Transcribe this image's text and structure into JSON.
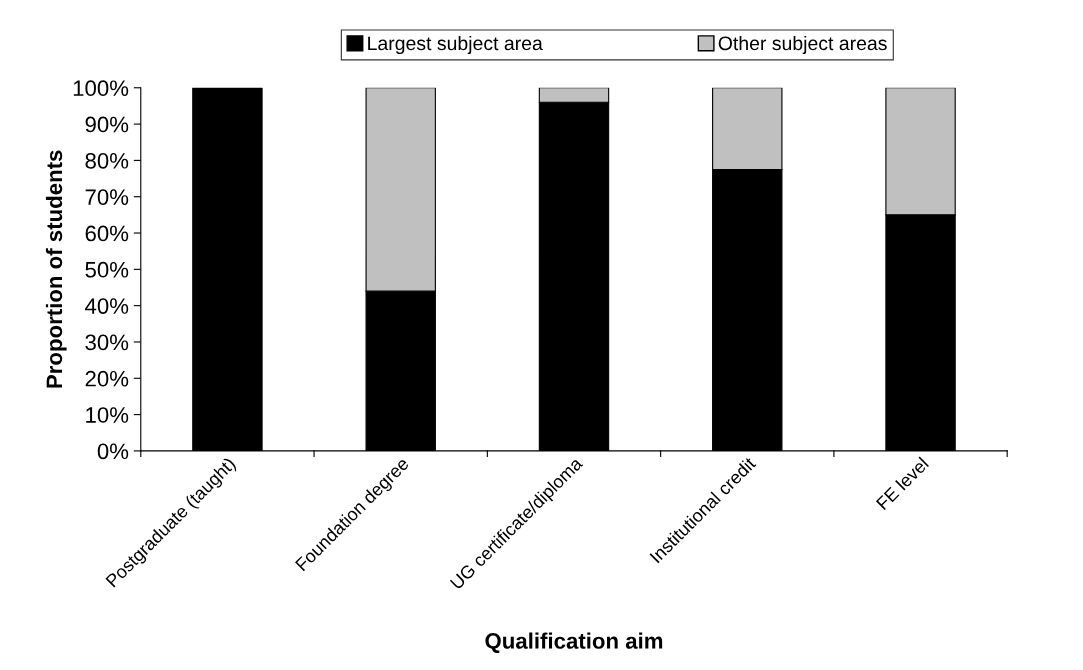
{
  "chart_data": {
    "type": "bar",
    "stacked": true,
    "xlabel": "Qualification aim",
    "ylabel": "Proportion of students",
    "categories": [
      "Postgraduate (taught)",
      "Foundation degree",
      "UG certificate/diploma",
      "Institutional credit",
      "FE level"
    ],
    "series": [
      {
        "name": "Largest subject area",
        "color": "#000000",
        "values": [
          100,
          44,
          96,
          77.5,
          65
        ]
      },
      {
        "name": "Other subject areas",
        "color": "#c0c0c0",
        "values": [
          null,
          56,
          4,
          22.5,
          35
        ]
      }
    ],
    "ylim": [
      0,
      100
    ],
    "yticks": [
      {
        "value": 0,
        "label": "0%"
      },
      {
        "value": 10,
        "label": "10%"
      },
      {
        "value": 20,
        "label": "20%"
      },
      {
        "value": 30,
        "label": "30%"
      },
      {
        "value": 40,
        "label": "40%"
      },
      {
        "value": 50,
        "label": "50%"
      },
      {
        "value": 60,
        "label": "60%"
      },
      {
        "value": 70,
        "label": "70%"
      },
      {
        "value": 80,
        "label": "80%"
      },
      {
        "value": 90,
        "label": "90%"
      },
      {
        "value": 100,
        "label": "100%"
      }
    ],
    "grid": false,
    "legend": "top"
  }
}
